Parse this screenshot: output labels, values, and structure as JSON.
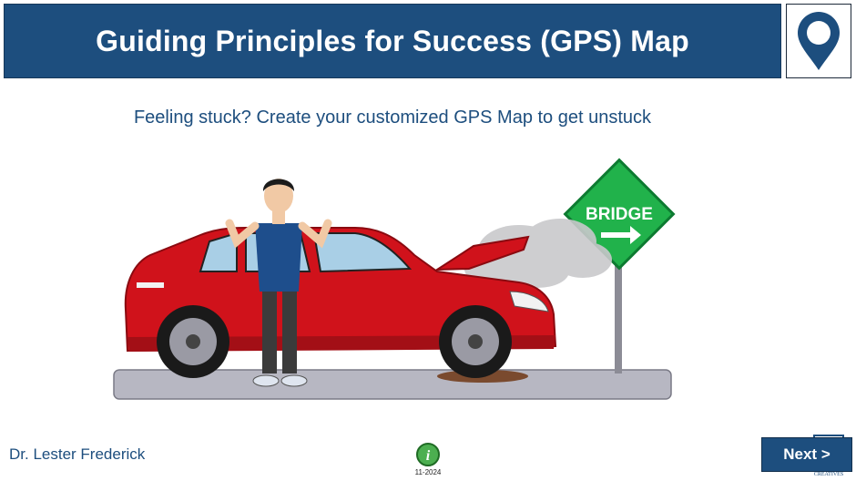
{
  "header": {
    "title": "Guiding Principles for Success (GPS) Map"
  },
  "pin": {
    "icon": "map-pin-icon",
    "color": "#1d4e7e",
    "inner": "#ffffff"
  },
  "subtitle": "Feeling stuck? Create your customized GPS Map to get unstuck",
  "scene": {
    "sign_text": "BRIDGE",
    "icons": [
      "broken-down-car",
      "stuck-man",
      "bridge-sign",
      "smoke-cloud",
      "road"
    ]
  },
  "footer": {
    "author": "Dr. Lester Frederick",
    "info_icon": "info-icon",
    "date": "11-2024",
    "next_label": "Next >",
    "brand_text": "CREATIVES"
  },
  "colors": {
    "brand_blue": "#1d4e7e",
    "car_red": "#d0121b",
    "sign_green": "#21b24b"
  }
}
